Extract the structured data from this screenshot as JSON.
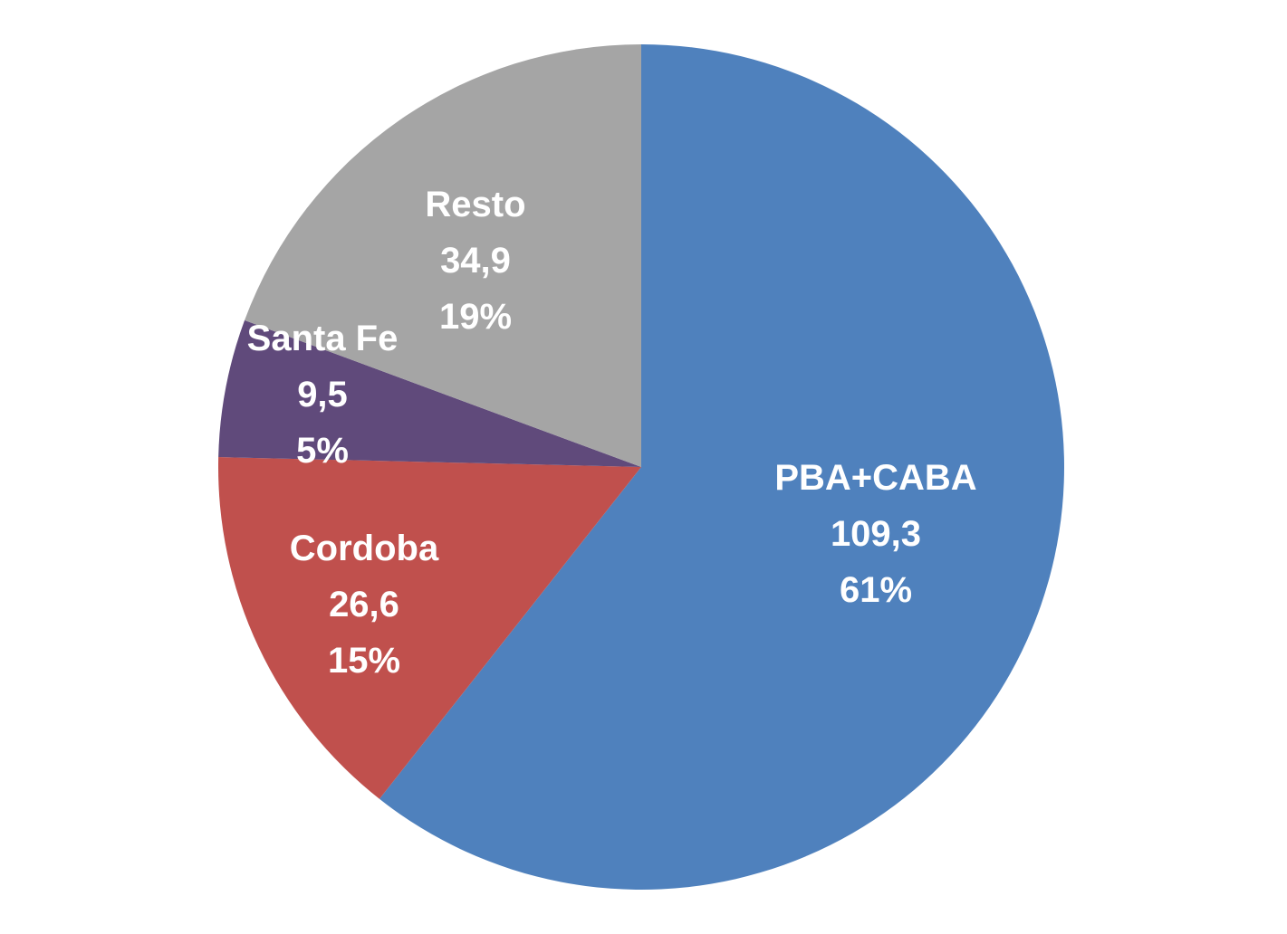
{
  "chart_data": {
    "type": "pie",
    "categories": [
      "PBA+CABA",
      "Cordoba",
      "Santa Fe",
      "Resto"
    ],
    "values": [
      109.3,
      26.6,
      9.5,
      34.9
    ],
    "value_labels": [
      "109,3",
      "26,6",
      "9,5",
      "34,9"
    ],
    "percent_labels": [
      "61%",
      "15%",
      "5%",
      "19%"
    ],
    "colors": [
      "#4F81BD",
      "#C0504D",
      "#604A7B",
      "#A5A5A5"
    ],
    "start": "12 o'clock",
    "direction": "clockwise",
    "legend": "none"
  }
}
